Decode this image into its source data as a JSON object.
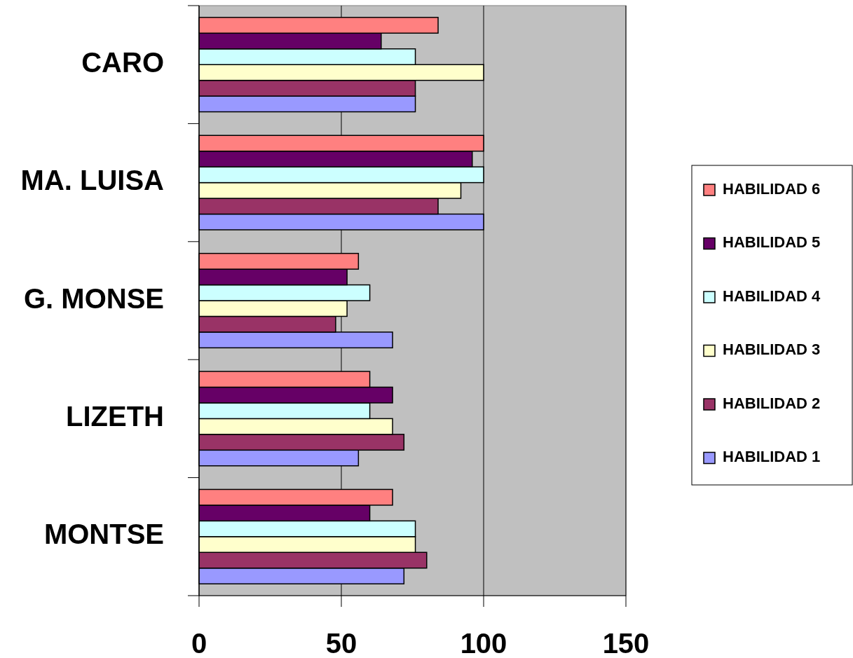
{
  "chart_data": {
    "type": "bar",
    "orientation": "horizontal",
    "categories": [
      "CARO",
      "MA. LUISA",
      "G. MONSE",
      "LIZETH",
      "MONTSE"
    ],
    "series": [
      {
        "name": "HABILIDAD 1",
        "color": "#9999ff",
        "values": [
          76,
          100,
          68,
          56,
          72
        ]
      },
      {
        "name": "HABILIDAD 2",
        "color": "#993366",
        "values": [
          76,
          84,
          48,
          72,
          80
        ]
      },
      {
        "name": "HABILIDAD 3",
        "color": "#ffffcc",
        "values": [
          100,
          92,
          52,
          68,
          76
        ]
      },
      {
        "name": "HABILIDAD 4",
        "color": "#ccffff",
        "values": [
          76,
          100,
          60,
          60,
          76
        ]
      },
      {
        "name": "HABILIDAD 5",
        "color": "#660066",
        "values": [
          64,
          96,
          52,
          68,
          60
        ]
      },
      {
        "name": "HABILIDAD 6",
        "color": "#ff8080",
        "values": [
          84,
          100,
          56,
          60,
          68
        ]
      }
    ],
    "xlim": [
      0,
      150
    ],
    "xticks": [
      0,
      50,
      100,
      150
    ],
    "grid": "x",
    "legend": "right"
  }
}
